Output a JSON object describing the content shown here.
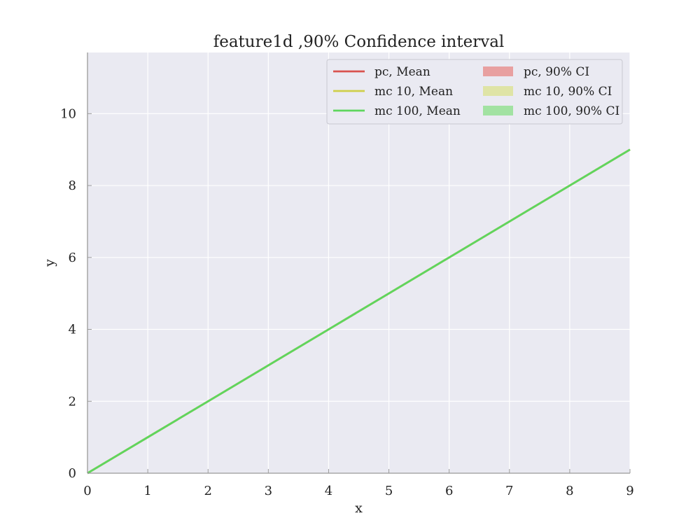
{
  "chart_data": {
    "type": "line",
    "title": "feature1d ,90% Confidence interval",
    "xlabel": "x",
    "ylabel": "y",
    "xlim": [
      0,
      9
    ],
    "ylim": [
      0,
      11.7
    ],
    "xticks": [
      0,
      1,
      2,
      3,
      4,
      5,
      6,
      7,
      8,
      9
    ],
    "yticks": [
      0,
      2,
      4,
      6,
      8,
      10
    ],
    "grid": true,
    "legend_position": "top-right",
    "series": [
      {
        "name": "pc, Mean",
        "kind": "line",
        "color": "#d9534f",
        "x": [
          0,
          1,
          2,
          3,
          4,
          5,
          6,
          7,
          8,
          9
        ],
        "y": [
          0,
          1,
          2,
          3,
          4,
          5,
          6,
          7,
          8,
          9
        ]
      },
      {
        "name": "mc 10, Mean",
        "kind": "line",
        "color": "#cfcf4a",
        "x": [
          0,
          1,
          2,
          3,
          4,
          5,
          6,
          7,
          8,
          9
        ],
        "y": [
          0,
          1,
          2,
          3,
          4,
          5,
          6,
          7,
          8,
          9
        ]
      },
      {
        "name": "mc 100, Mean",
        "kind": "line",
        "color": "#5ed65e",
        "x": [
          0,
          1,
          2,
          3,
          4,
          5,
          6,
          7,
          8,
          9
        ],
        "y": [
          0,
          1,
          2,
          3,
          4,
          5,
          6,
          7,
          8,
          9
        ]
      },
      {
        "name": "pc, 90% CI",
        "kind": "band",
        "color": "#e8a0a0",
        "x": [
          0,
          1,
          2,
          3,
          4,
          5,
          6,
          7,
          8,
          9
        ],
        "lower": [
          0,
          1,
          2,
          3,
          4,
          5,
          6,
          7,
          8,
          9
        ],
        "upper": [
          0,
          1,
          2,
          3,
          4,
          5,
          6,
          7,
          8,
          9
        ]
      },
      {
        "name": "mc 10, 90% CI",
        "kind": "band",
        "color": "#dfe4a6",
        "x": [
          0,
          1,
          2,
          3,
          4,
          5,
          6,
          7,
          8,
          9
        ],
        "lower": [
          0,
          1,
          2,
          3,
          4,
          5,
          6,
          7,
          8,
          9
        ],
        "upper": [
          0,
          1,
          2,
          3,
          4,
          5,
          6,
          7,
          8,
          9
        ]
      },
      {
        "name": "mc 100, 90% CI",
        "kind": "band",
        "color": "#a2e2a2",
        "x": [
          0,
          1,
          2,
          3,
          4,
          5,
          6,
          7,
          8,
          9
        ],
        "lower": [
          0,
          1,
          2,
          3,
          4,
          5,
          6,
          7,
          8,
          9
        ],
        "upper": [
          0,
          1,
          2,
          3,
          4,
          5,
          6,
          7,
          8,
          9
        ]
      }
    ],
    "colors": {
      "plot_background": "#eaeaf2",
      "grid": "#ffffff",
      "spine": "#999999"
    }
  }
}
